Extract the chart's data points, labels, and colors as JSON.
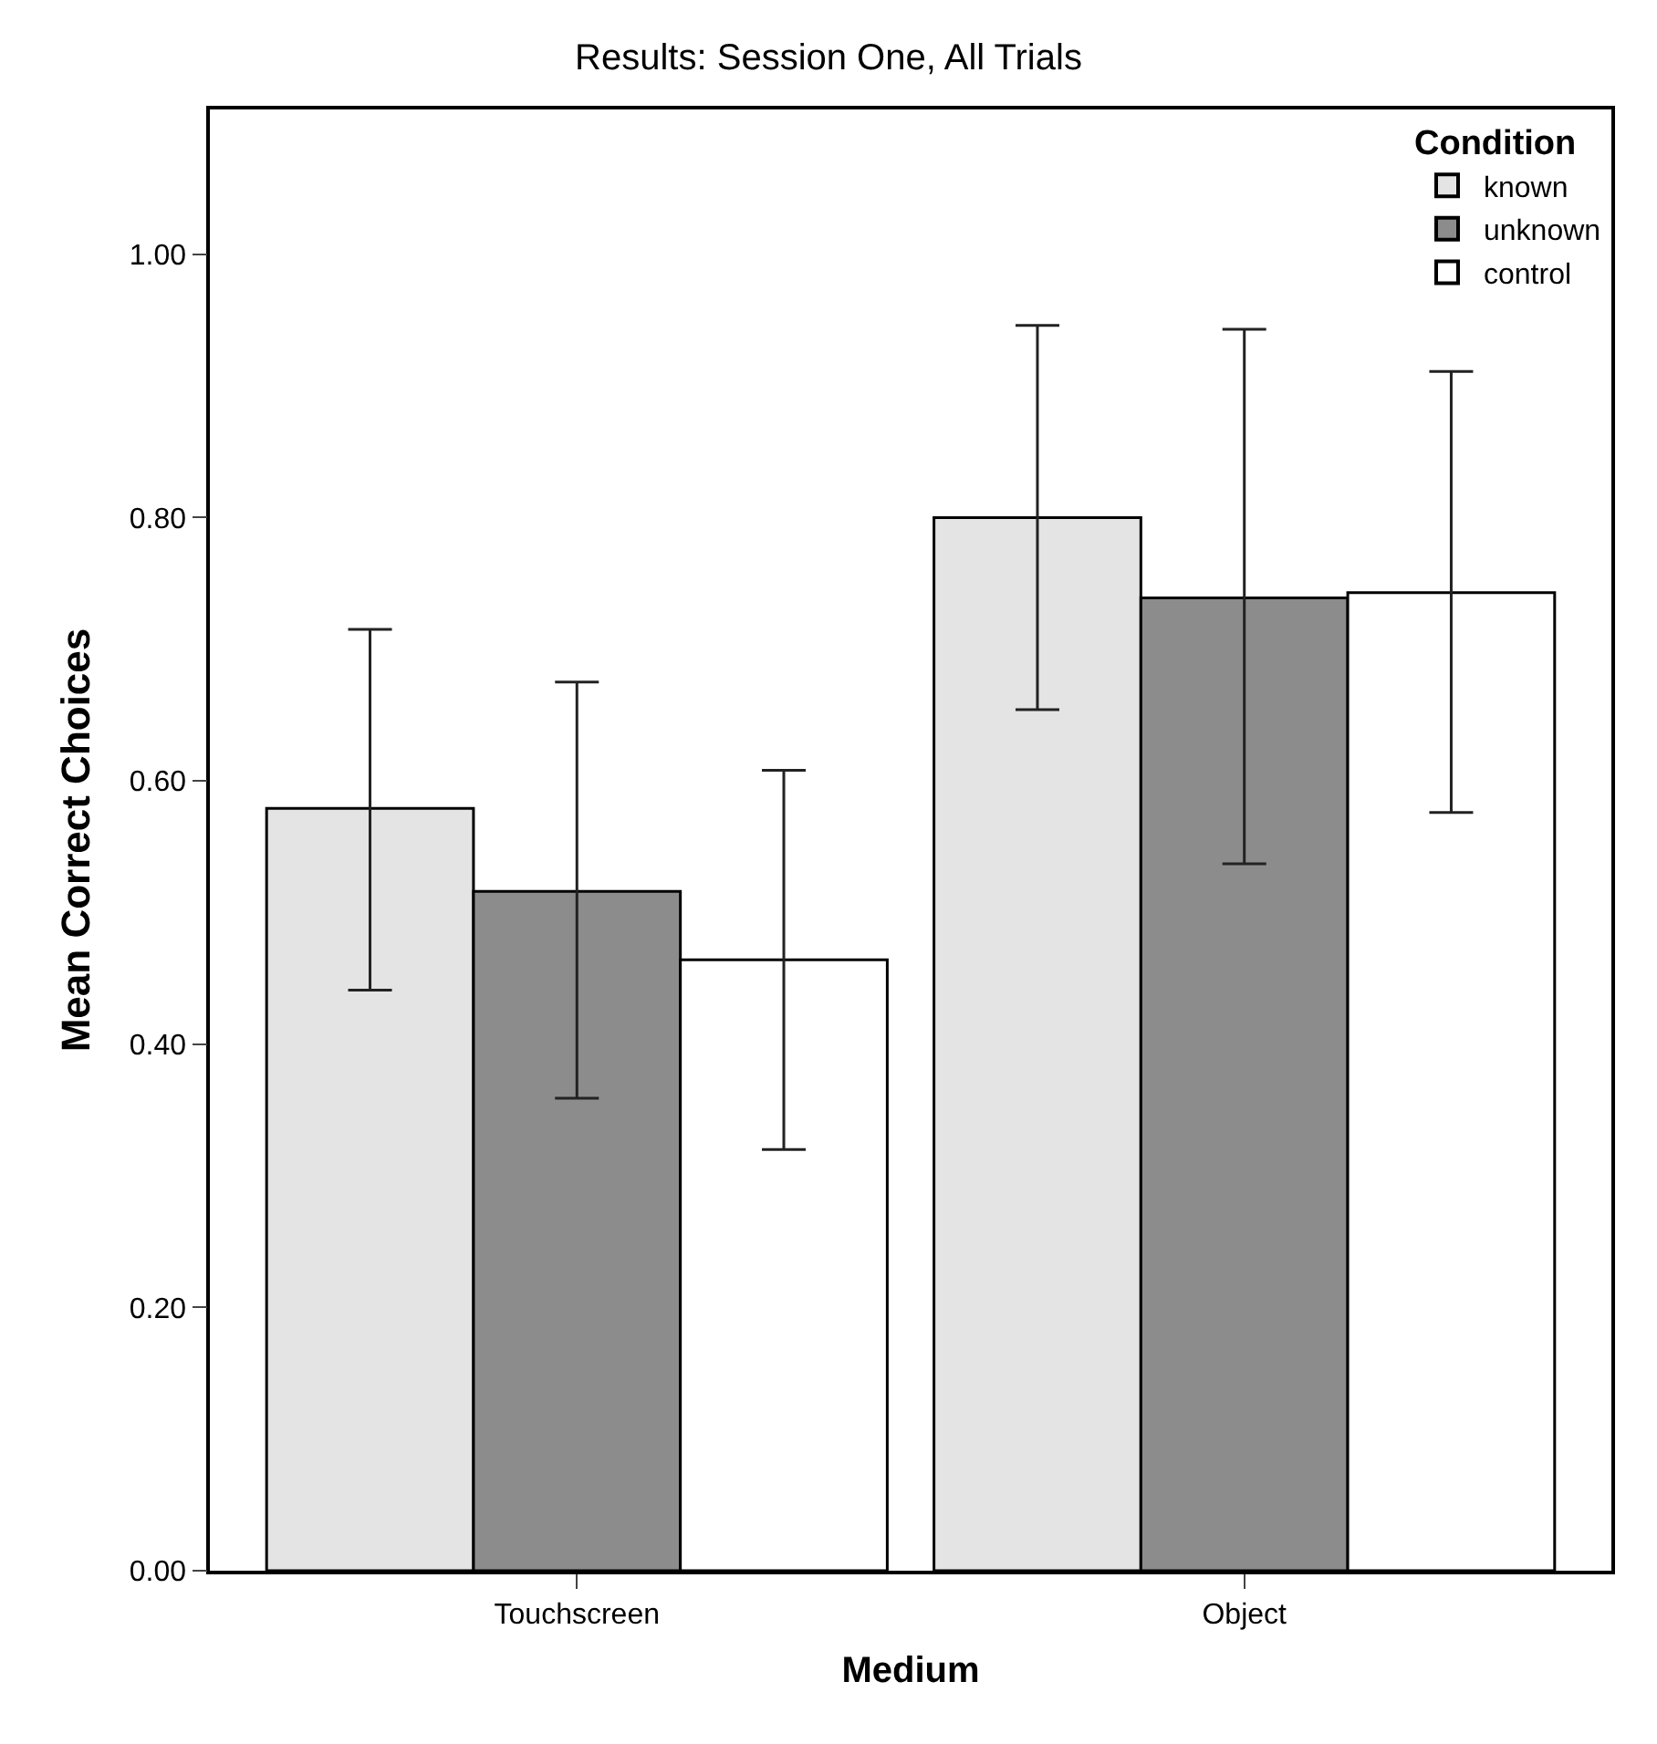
{
  "chart_data": {
    "type": "bar",
    "title": "Results: Session One, All Trials",
    "xlabel": "Medium",
    "ylabel": "Mean Correct Choices",
    "legend_title": "Condition",
    "categories": [
      "Touchscreen",
      "Object"
    ],
    "series": [
      {
        "name": "known",
        "color": "#e4e4e4",
        "values": [
          0.579,
          0.8
        ],
        "errors": [
          [
            0.441,
            0.715
          ],
          [
            0.654,
            0.946
          ]
        ]
      },
      {
        "name": "unknown",
        "color": "#8c8c8c",
        "values": [
          0.516,
          0.739
        ],
        "errors": [
          [
            0.359,
            0.675
          ],
          [
            0.537,
            0.943
          ]
        ]
      },
      {
        "name": "control",
        "color": "#ffffff",
        "values": [
          0.464,
          0.743
        ],
        "errors": [
          [
            0.32,
            0.608
          ],
          [
            0.576,
            0.911
          ]
        ]
      }
    ],
    "ylim": [
      0,
      1.11
    ],
    "yticks": [
      {
        "value": 0,
        "label": "0.00"
      },
      {
        "value": 0.2,
        "label": "0.20"
      },
      {
        "value": 0.4,
        "label": "0.40"
      },
      {
        "value": 0.6,
        "label": "0.60"
      },
      {
        "value": 0.8,
        "label": "0.80"
      },
      {
        "value": 1.0,
        "label": "1.00"
      }
    ],
    "grid": false,
    "legend": "top right"
  }
}
